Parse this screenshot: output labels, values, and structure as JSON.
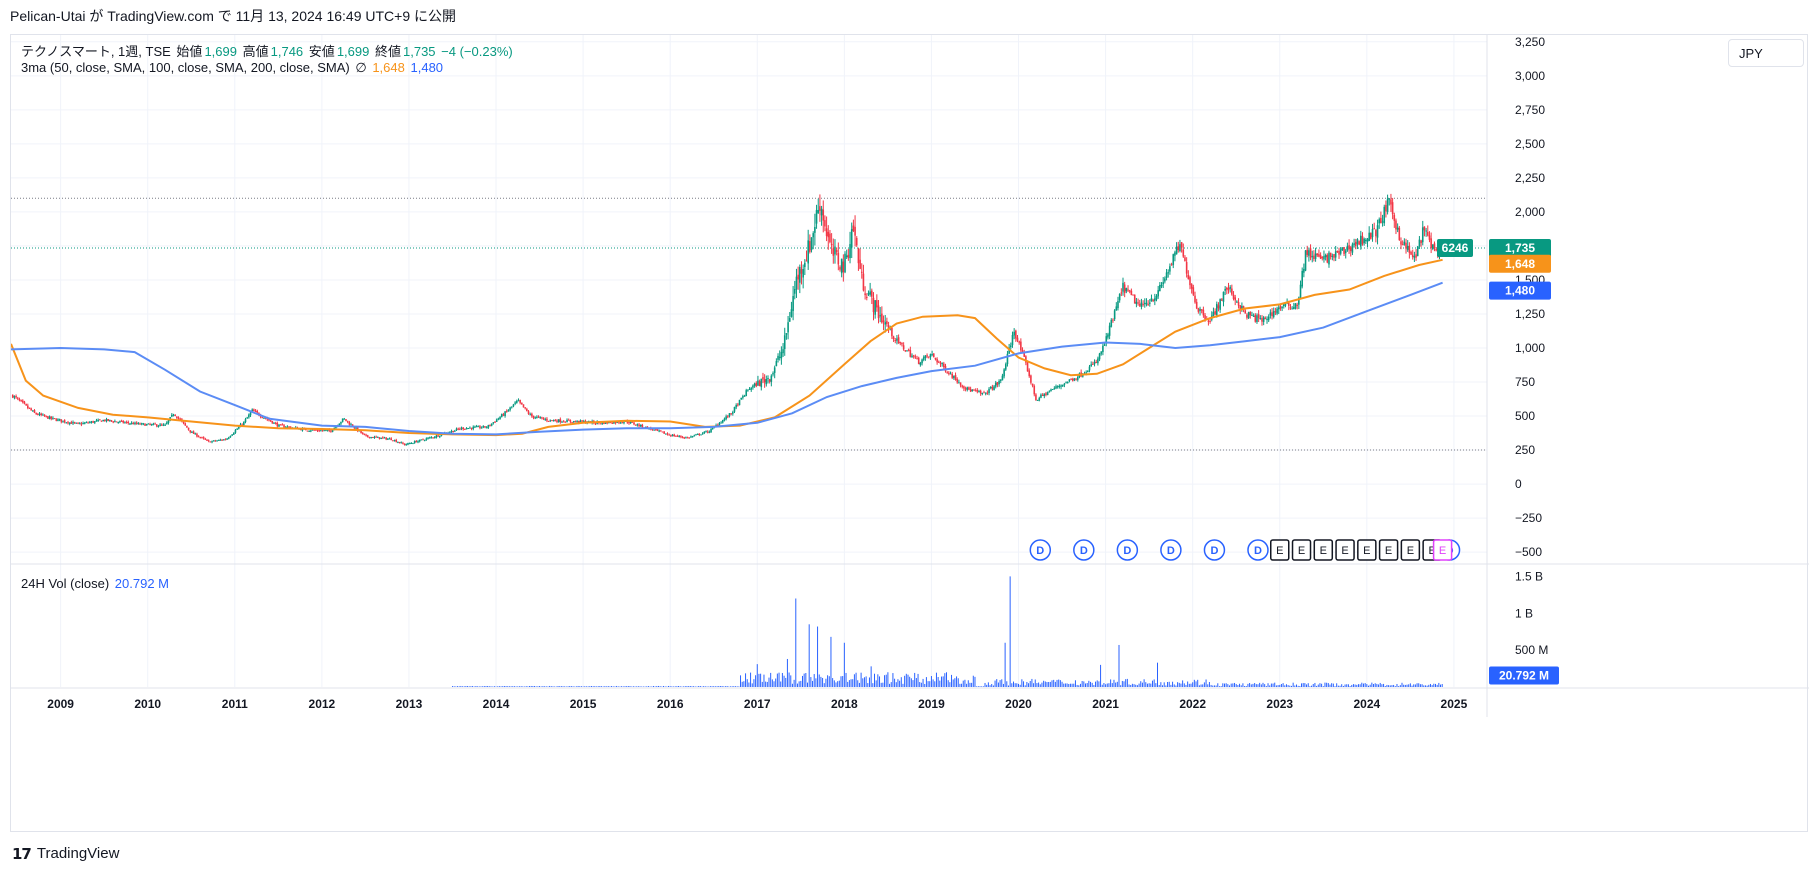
{
  "header": {
    "published_line": "Pelican-Utai が TradingView.com で 11月 13, 2024 16:49 UTC+9 に公開"
  },
  "legend": {
    "symbol_line": "テクノスマート, 1週, TSE",
    "open_label": "始値",
    "open_value": "1,699",
    "high_label": "高値",
    "high_value": "1,746",
    "low_label": "安値",
    "low_value": "1,699",
    "close_label": "終値",
    "close_value": "1,735",
    "change": "−4 (−0.23%)",
    "ma_label": "3ma (50, close, SMA, 100, close, SMA, 200, close, SMA)",
    "ma_symbol": "∅",
    "ma_value_1": "1,648",
    "ma_value_2": "1,480"
  },
  "volume_legend": {
    "label": "24H Vol (close)",
    "value": "20.792 M"
  },
  "currency": "JPY",
  "footer": {
    "brand": "TradingView",
    "logo_glyph": "17"
  },
  "price_badges": {
    "ticker": "6246",
    "last": "1,735",
    "ma_a": "1,648",
    "ma_b": "1,480",
    "volume": "20.792 M"
  },
  "event_markers": {
    "dividend_label": "D",
    "earnings_label": "E"
  },
  "colors": {
    "up": "#089981",
    "down": "#f23645",
    "ma_orange": "#f7931a",
    "ma_blue": "#2962ff",
    "ma_blue_light": "#5b8cf5",
    "volume": "#2962ff",
    "grid": "#f0f3fa",
    "earnings_highlight": "#e040fb"
  },
  "chart_data": {
    "type": "candlestick",
    "interval": "1 week",
    "symbol": "テクノスマート",
    "exchange": "TSE",
    "y_axis": {
      "ticks": [
        3250,
        3000,
        2750,
        2500,
        2250,
        2000,
        1750,
        1500,
        1250,
        1000,
        750,
        500,
        250,
        0,
        -250,
        -500
      ],
      "tick_labels": [
        "3,250",
        "3,000",
        "2,750",
        "2,500",
        "2,250",
        "2,000",
        "1,750",
        "1,500",
        "1,250",
        "1,000",
        "750",
        "500",
        "250",
        "0",
        "−250",
        "−500"
      ],
      "ylim": [
        -580,
        3300
      ]
    },
    "x_axis": {
      "ticks": [
        "2009",
        "2010",
        "2011",
        "2012",
        "2013",
        "2014",
        "2015",
        "2016",
        "2017",
        "2018",
        "2019",
        "2020",
        "2021",
        "2022",
        "2023",
        "2024",
        "2025"
      ],
      "xlim": [
        2008.43,
        2025.38
      ]
    },
    "horizontal_lines": [
      2100,
      250
    ],
    "price_path": [
      [
        2008.45,
        650
      ],
      [
        2008.7,
        520
      ],
      [
        2008.9,
        480
      ],
      [
        2009.2,
        440
      ],
      [
        2009.5,
        470
      ],
      [
        2009.9,
        440
      ],
      [
        2010.2,
        430
      ],
      [
        2010.3,
        520
      ],
      [
        2010.5,
        380
      ],
      [
        2010.7,
        310
      ],
      [
        2010.9,
        330
      ],
      [
        2011.1,
        450
      ],
      [
        2011.2,
        540
      ],
      [
        2011.5,
        430
      ],
      [
        2011.8,
        400
      ],
      [
        2012.1,
        390
      ],
      [
        2012.25,
        480
      ],
      [
        2012.5,
        350
      ],
      [
        2012.8,
        330
      ],
      [
        2012.95,
        290
      ],
      [
        2013.3,
        350
      ],
      [
        2013.6,
        410
      ],
      [
        2013.9,
        420
      ],
      [
        2014.1,
        520
      ],
      [
        2014.25,
        610
      ],
      [
        2014.4,
        500
      ],
      [
        2014.6,
        470
      ],
      [
        2014.9,
        460
      ],
      [
        2015.2,
        450
      ],
      [
        2015.5,
        460
      ],
      [
        2015.8,
        400
      ],
      [
        2016.0,
        360
      ],
      [
        2016.2,
        340
      ],
      [
        2016.45,
        390
      ],
      [
        2016.7,
        520
      ],
      [
        2016.9,
        700
      ],
      [
        2017.15,
        790
      ],
      [
        2017.3,
        1000
      ],
      [
        2017.45,
        1500
      ],
      [
        2017.6,
        1750
      ],
      [
        2017.72,
        2080
      ],
      [
        2017.85,
        1700
      ],
      [
        2018.0,
        1600
      ],
      [
        2018.1,
        1900
      ],
      [
        2018.2,
        1500
      ],
      [
        2018.35,
        1300
      ],
      [
        2018.6,
        1050
      ],
      [
        2018.85,
        900
      ],
      [
        2019.0,
        950
      ],
      [
        2019.2,
        820
      ],
      [
        2019.4,
        700
      ],
      [
        2019.6,
        660
      ],
      [
        2019.8,
        760
      ],
      [
        2019.95,
        1130
      ],
      [
        2020.1,
        850
      ],
      [
        2020.2,
        620
      ],
      [
        2020.4,
        700
      ],
      [
        2020.7,
        800
      ],
      [
        2020.9,
        900
      ],
      [
        2021.0,
        1050
      ],
      [
        2021.2,
        1450
      ],
      [
        2021.4,
        1300
      ],
      [
        2021.6,
        1400
      ],
      [
        2021.85,
        1760
      ],
      [
        2022.05,
        1300
      ],
      [
        2022.2,
        1200
      ],
      [
        2022.4,
        1450
      ],
      [
        2022.6,
        1250
      ],
      [
        2022.8,
        1200
      ],
      [
        2023.0,
        1300
      ],
      [
        2023.2,
        1320
      ],
      [
        2023.3,
        1700
      ],
      [
        2023.5,
        1650
      ],
      [
        2023.7,
        1700
      ],
      [
        2023.9,
        1780
      ],
      [
        2024.1,
        1850
      ],
      [
        2024.25,
        2070
      ],
      [
        2024.4,
        1780
      ],
      [
        2024.55,
        1650
      ],
      [
        2024.65,
        1870
      ],
      [
        2024.8,
        1700
      ],
      [
        2024.87,
        1735
      ]
    ],
    "series": [
      {
        "name": "SMA 100",
        "color": "#f7931a",
        "points": [
          [
            2008.43,
            1030
          ],
          [
            2008.6,
            760
          ],
          [
            2008.8,
            650
          ],
          [
            2009.2,
            560
          ],
          [
            2009.6,
            510
          ],
          [
            2010.0,
            490
          ],
          [
            2010.5,
            460
          ],
          [
            2011.0,
            430
          ],
          [
            2011.5,
            410
          ],
          [
            2012.0,
            405
          ],
          [
            2012.5,
            395
          ],
          [
            2013.0,
            375
          ],
          [
            2013.5,
            365
          ],
          [
            2014.0,
            360
          ],
          [
            2014.3,
            370
          ],
          [
            2014.6,
            420
          ],
          [
            2015.0,
            450
          ],
          [
            2015.5,
            465
          ],
          [
            2016.0,
            460
          ],
          [
            2016.4,
            420
          ],
          [
            2016.8,
            430
          ],
          [
            2017.2,
            490
          ],
          [
            2017.6,
            650
          ],
          [
            2018.0,
            880
          ],
          [
            2018.3,
            1050
          ],
          [
            2018.6,
            1180
          ],
          [
            2018.9,
            1230
          ],
          [
            2019.3,
            1240
          ],
          [
            2019.5,
            1220
          ],
          [
            2019.75,
            1070
          ],
          [
            2020.0,
            930
          ],
          [
            2020.3,
            850
          ],
          [
            2020.6,
            800
          ],
          [
            2020.9,
            810
          ],
          [
            2021.2,
            880
          ],
          [
            2021.5,
            1000
          ],
          [
            2021.8,
            1120
          ],
          [
            2022.2,
            1220
          ],
          [
            2022.6,
            1290
          ],
          [
            2023.0,
            1320
          ],
          [
            2023.4,
            1390
          ],
          [
            2023.8,
            1430
          ],
          [
            2024.2,
            1530
          ],
          [
            2024.6,
            1610
          ],
          [
            2024.87,
            1648
          ]
        ]
      },
      {
        "name": "SMA 200",
        "color": "#2962ff",
        "points": [
          [
            2008.43,
            990
          ],
          [
            2009.0,
            1000
          ],
          [
            2009.5,
            990
          ],
          [
            2009.85,
            970
          ],
          [
            2010.2,
            840
          ],
          [
            2010.6,
            680
          ],
          [
            2011.0,
            580
          ],
          [
            2011.4,
            480
          ],
          [
            2012.0,
            430
          ],
          [
            2012.5,
            420
          ],
          [
            2013.0,
            390
          ],
          [
            2013.5,
            370
          ],
          [
            2014.0,
            365
          ],
          [
            2014.5,
            385
          ],
          [
            2015.0,
            400
          ],
          [
            2015.5,
            410
          ],
          [
            2016.0,
            410
          ],
          [
            2016.5,
            420
          ],
          [
            2017.0,
            450
          ],
          [
            2017.4,
            520
          ],
          [
            2017.8,
            640
          ],
          [
            2018.2,
            720
          ],
          [
            2018.6,
            780
          ],
          [
            2019.0,
            830
          ],
          [
            2019.5,
            870
          ],
          [
            2020.0,
            960
          ],
          [
            2020.5,
            1010
          ],
          [
            2021.0,
            1040
          ],
          [
            2021.4,
            1030
          ],
          [
            2021.8,
            1000
          ],
          [
            2022.2,
            1020
          ],
          [
            2022.6,
            1050
          ],
          [
            2023.0,
            1080
          ],
          [
            2023.5,
            1150
          ],
          [
            2024.0,
            1270
          ],
          [
            2024.5,
            1390
          ],
          [
            2024.87,
            1480
          ]
        ]
      }
    ],
    "volume": {
      "label": "24H Vol (close)",
      "ticks": [
        "1.5 B",
        "1 B",
        "500 M"
      ],
      "tick_values": [
        1500000000,
        1000000000,
        500000000
      ],
      "ylim": [
        0,
        1600000000
      ],
      "last_value": "20.792 M",
      "spikes": [
        [
          2017.45,
          1200000000
        ],
        [
          2017.6,
          850000000
        ],
        [
          2017.7,
          820000000
        ],
        [
          2017.85,
          680000000
        ],
        [
          2018.0,
          600000000
        ],
        [
          2017.35,
          380000000
        ],
        [
          2017.0,
          310000000
        ],
        [
          2019.9,
          1500000000
        ],
        [
          2019.85,
          600000000
        ],
        [
          2021.15,
          570000000
        ],
        [
          2020.95,
          300000000
        ],
        [
          2021.6,
          330000000
        ],
        [
          2018.3,
          280000000
        ],
        [
          2018.5,
          200000000
        ]
      ]
    },
    "events": {
      "dividends_x": [
        2020.25,
        2020.75,
        2021.25,
        2021.75,
        2022.25,
        2022.75,
        2024.95
      ],
      "earnings_x": [
        2023.0,
        2023.25,
        2023.5,
        2023.75,
        2024.0,
        2024.25,
        2024.5,
        2024.75,
        2024.87
      ]
    }
  }
}
